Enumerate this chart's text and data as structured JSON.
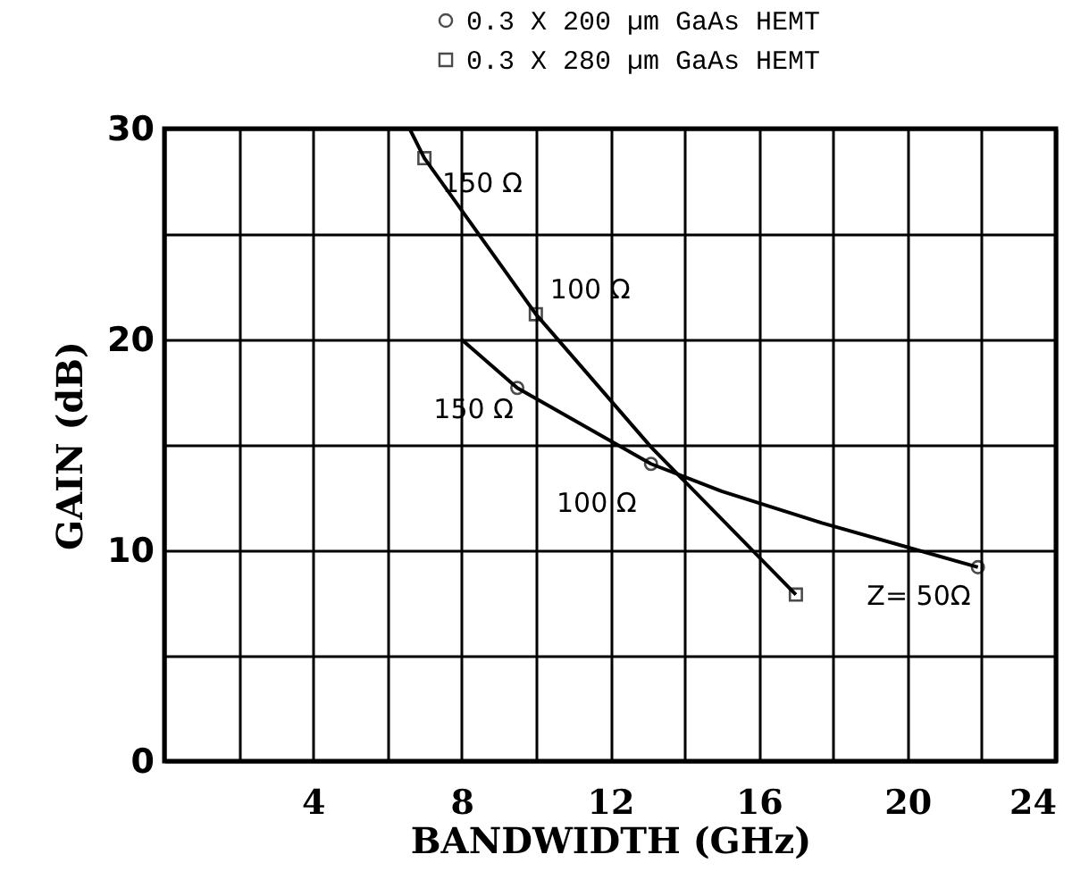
{
  "chart_data": {
    "type": "line",
    "xlabel": "BANDWIDTH  (GHz)",
    "ylabel": "GAIN (dB)",
    "xlim": [
      0,
      24
    ],
    "ylim": [
      0,
      30
    ],
    "xticks": [
      {
        "value": 0,
        "label": null
      },
      {
        "value": 2,
        "label": null
      },
      4,
      {
        "value": 6,
        "label": null
      },
      8,
      {
        "value": 10,
        "label": null
      },
      12,
      {
        "value": 14,
        "label": null
      },
      16,
      {
        "value": 18,
        "label": null
      },
      20,
      {
        "value": 22,
        "label": null
      },
      24
    ],
    "yticks": [
      0,
      {
        "value": 5,
        "label": null
      },
      10,
      {
        "value": 15,
        "label": null
      },
      20,
      {
        "value": 25,
        "label": null
      },
      30
    ],
    "grid": true,
    "legend": "top right",
    "series": [
      {
        "marker": "none",
        "color": "#000000",
        "x": [
          8,
          9.5,
          13.1,
          15.0,
          17.7,
          21.9
        ],
        "values": [
          20,
          17.7,
          14.1,
          12.8,
          11.3,
          9.2
        ]
      },
      {
        "marker": "none",
        "color": "#000000",
        "x": [
          6.6,
          7.0,
          10.0,
          13.1,
          17.0
        ],
        "values": [
          30,
          28.6,
          21.2,
          14.9,
          7.9
        ]
      },
      {
        "name": "0.3 X 200 µm GaAs HEMT",
        "type": "scatter",
        "marker": "circle",
        "color": "#000000",
        "x": [
          9.5,
          13.1,
          21.9
        ],
        "values": [
          17.7,
          14.1,
          9.2
        ]
      },
      {
        "name": "0.3 X 280 µm GaAs HEMT",
        "type": "scatter",
        "marker": "square",
        "color": "#000000",
        "x": [
          7.0,
          10.0,
          17.0
        ],
        "values": [
          28.6,
          21.2,
          7.9
        ]
      }
    ],
    "annotations": [
      {
        "text": "150 Ω",
        "x": 7.0,
        "y": 28.6
      },
      {
        "text": "100 Ω",
        "x": 10.0,
        "y": 21.2
      },
      {
        "text": "150 Ω",
        "x": 9.5,
        "y": 17.7
      },
      {
        "text": "100 Ω",
        "x": 13.1,
        "y": 14.1
      },
      {
        "text": "Z= 50Ω",
        "x": 21.9,
        "y": 9.2
      }
    ]
  }
}
